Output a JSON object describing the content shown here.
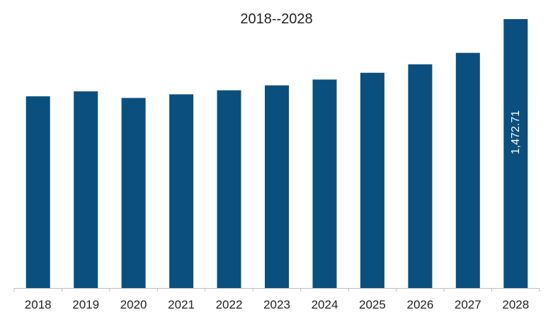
{
  "chart_data": {
    "type": "bar",
    "title": "2018--2028",
    "xlabel": "",
    "ylabel": "",
    "categories": [
      "2018",
      "2019",
      "2020",
      "2021",
      "2022",
      "2023",
      "2024",
      "2025",
      "2026",
      "2027",
      "2028"
    ],
    "values": [
      1050,
      1077,
      1041,
      1061,
      1083,
      1110,
      1142,
      1179,
      1225,
      1288,
      1472.71
    ],
    "data_labels": {
      "10": "1,472.71"
    },
    "ylim": [
      0,
      1500
    ],
    "grid": false,
    "legend": "none",
    "bar_color": "#0b4f7e",
    "axis_color": "#bfbfbf"
  }
}
